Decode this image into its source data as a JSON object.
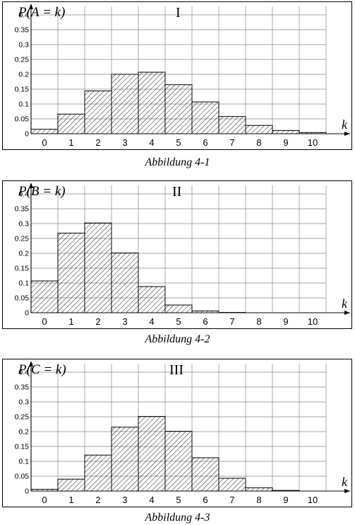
{
  "chart_data": [
    {
      "type": "bar",
      "title": "I",
      "ylabel": "P(A = k)",
      "xlabel": "k",
      "caption": "Abbildung 4-1",
      "categories": [
        "0",
        "1",
        "2",
        "3",
        "4",
        "5",
        "6",
        "7",
        "8",
        "9",
        "10"
      ],
      "values": [
        0.015,
        0.066,
        0.144,
        0.2,
        0.207,
        0.165,
        0.107,
        0.058,
        0.028,
        0.011,
        0.004
      ],
      "ylim": [
        0,
        0.4
      ],
      "yticks": [
        "0",
        "0.05",
        "0.1",
        "0.15",
        "0.2",
        "0.25",
        "0.3",
        "0.35",
        "0.4"
      ],
      "grid": true,
      "pattern": "diagonal-hatch"
    },
    {
      "type": "bar",
      "title": "II",
      "ylabel": "P(B = k)",
      "xlabel": "k",
      "caption": "Abbildung 4-2",
      "categories": [
        "0",
        "1",
        "2",
        "3",
        "4",
        "5",
        "6",
        "7",
        "8",
        "9",
        "10"
      ],
      "values": [
        0.107,
        0.268,
        0.302,
        0.201,
        0.088,
        0.026,
        0.006,
        0.001,
        0.0,
        0.0,
        0.0
      ],
      "ylim": [
        0,
        0.4
      ],
      "yticks": [
        "0",
        "0.05",
        "0.1",
        "0.15",
        "0.2",
        "0.25",
        "0.3",
        "0.35",
        "0.4"
      ],
      "grid": true,
      "pattern": "diagonal-hatch"
    },
    {
      "type": "bar",
      "title": "III",
      "ylabel": "P(C = k)",
      "xlabel": "k",
      "caption": "Abbildung 4-3",
      "categories": [
        "0",
        "1",
        "2",
        "3",
        "4",
        "5",
        "6",
        "7",
        "8",
        "9",
        "10"
      ],
      "values": [
        0.006,
        0.04,
        0.121,
        0.215,
        0.251,
        0.201,
        0.112,
        0.043,
        0.011,
        0.002,
        0.0
      ],
      "ylim": [
        0,
        0.4
      ],
      "yticks": [
        "0",
        "0.05",
        "0.1",
        "0.15",
        "0.2",
        "0.25",
        "0.3",
        "0.35",
        "0.4"
      ],
      "grid": true,
      "pattern": "diagonal-hatch"
    }
  ]
}
